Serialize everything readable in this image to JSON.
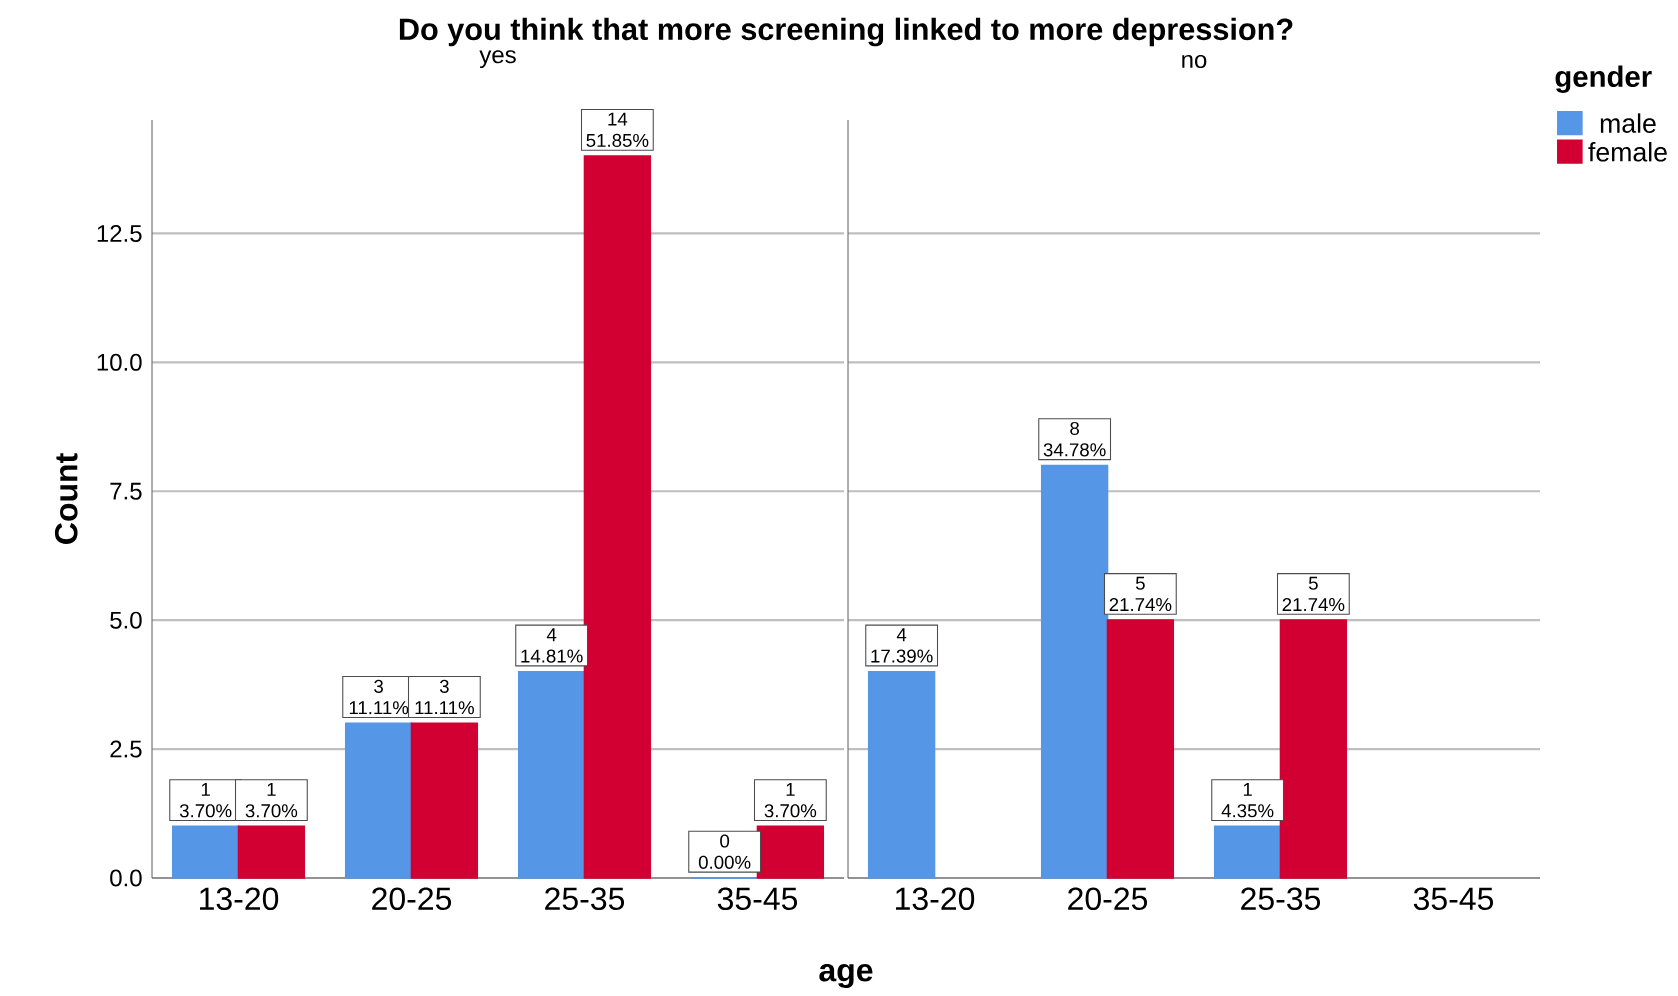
{
  "chart_data": [
    {
      "type": "bar",
      "title": "Do you think that more screening linked to more depression?",
      "subtitle": "yes",
      "xlabel": "age",
      "ylabel": "Count",
      "categories": [
        "13-20",
        "20-25",
        "25-35",
        "35-45"
      ],
      "series": [
        {
          "color": "#5596e6",
          "values": [
            1,
            3,
            4,
            0
          ],
          "value_labels": [
            "1 3.70%",
            "3 11.11%",
            "4 14.81%",
            "0 0.00%"
          ]
        },
        {
          "color": "#d20032",
          "values": [
            1,
            3,
            14,
            1
          ],
          "value_labels": [
            "1 3.70%",
            "3 11.11%",
            "14 51.85%",
            "1 3.70%"
          ]
        }
      ],
      "ylim": [
        0,
        14.7
      ],
      "yticks": [
        {
          "value": 0,
          "label": "0.0"
        },
        2.5,
        {
          "value": 5,
          "label": "5.0"
        },
        7.5,
        {
          "value": 10,
          "label": "10.0"
        },
        12.5
      ],
      "grid": "y"
    },
    {
      "type": "bar",
      "subtitle": "no",
      "legend_title": "gender",
      "legend": "right",
      "categories": [
        "13-20",
        "20-25",
        "25-35",
        "35-45"
      ],
      "series": [
        {
          "name": "male",
          "color": "#5596e6",
          "values": [
            4,
            8,
            1,
            null
          ],
          "value_labels": [
            "4 17.39%",
            "8 34.78%",
            "1 4.35%",
            null
          ]
        },
        {
          "name": "female",
          "color": "#d20032",
          "values": [
            null,
            5,
            5,
            null
          ],
          "value_labels": [
            null,
            "5 21.74%",
            "5 21.74%",
            null
          ]
        }
      ],
      "ylim": [
        0,
        14.7
      ],
      "yticks": [
        0,
        2.5,
        5,
        7.5,
        10,
        12.5
      ],
      "grid": "y",
      "tick_labels": "x"
    }
  ]
}
